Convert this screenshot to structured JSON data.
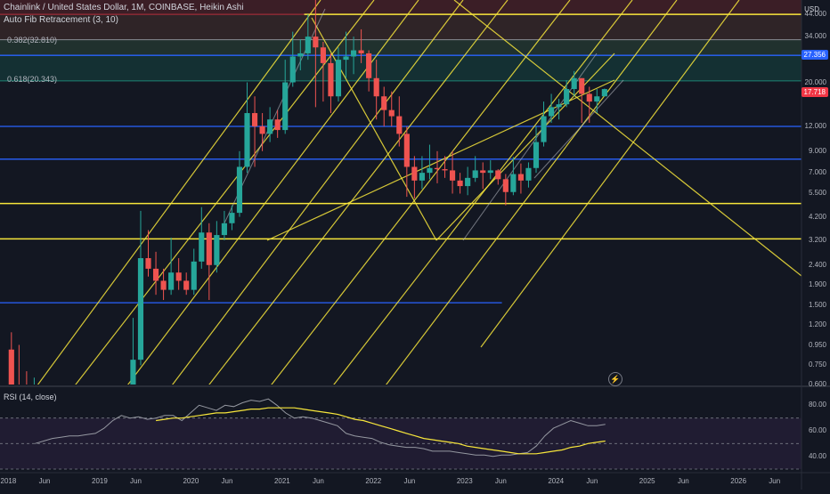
{
  "header": {
    "title": "Chainlink / United States Dollar, 1M, COINBASE, Heikin Ashi",
    "indicator": "Auto Fib Retracement (3, 10)"
  },
  "fib_levels": [
    {
      "label": "0.382(32.810)",
      "color": "#b2b5be"
    },
    {
      "label": "0.618(20.343)",
      "color": "#22ab94"
    }
  ],
  "price_axis": {
    "currency": "USD",
    "ticks": [
      "44.000",
      "34.000",
      "27.000",
      "20.000",
      "12.000",
      "9.000",
      "7.000",
      "5.500",
      "4.200",
      "3.200",
      "2.400",
      "1.900",
      "1.500",
      "1.200",
      "0.950",
      "0.750",
      "0.600"
    ]
  },
  "badges": [
    {
      "text": "27.356",
      "color": "#2962ff"
    },
    {
      "text": "17.718",
      "color": "#f23645"
    }
  ],
  "rsi": {
    "label": "RSI (14, close)",
    "ticks": [
      "80.00",
      "60.00",
      "40.00"
    ]
  },
  "time_axis": {
    "labels": [
      "2018",
      "Jun",
      "2019",
      "Jun",
      "2020",
      "Jun",
      "2021",
      "Jun",
      "2022",
      "Jun",
      "2023",
      "Jun",
      "2024",
      "Jun",
      "2025",
      "Jun",
      "2026",
      "Jun"
    ]
  },
  "colors": {
    "up": "#26a69a",
    "down": "#ef5350",
    "fib_line": "#f7e63b",
    "blue_line": "#2962ff",
    "rsi": "#9598a1",
    "rsi_ma": "#f7e63b"
  },
  "chart_data": {
    "type": "candlestick",
    "symbol": "LINK/USD",
    "scale": "log",
    "ylim": [
      0.6,
      52
    ],
    "candles": [
      {
        "t": "2018-01",
        "o": 0.9,
        "h": 1.1,
        "l": 0.45,
        "c": 0.45
      },
      {
        "t": "2018-02",
        "o": 0.6,
        "h": 0.95,
        "l": 0.45,
        "c": 0.45
      },
      {
        "t": "2018-03",
        "o": 0.45,
        "h": 0.7,
        "l": 0.4,
        "c": 0.4
      },
      {
        "t": "2018-04",
        "o": 0.4,
        "h": 0.65,
        "l": 0.35,
        "c": 0.4
      },
      {
        "t": "2019-05",
        "o": 0.6,
        "h": 1.3,
        "l": 0.55,
        "c": 0.8
      },
      {
        "t": "2019-06",
        "o": 0.8,
        "h": 4.5,
        "l": 0.75,
        "c": 2.6
      },
      {
        "t": "2019-07",
        "o": 2.6,
        "h": 3.6,
        "l": 2.1,
        "c": 2.3
      },
      {
        "t": "2019-08",
        "o": 2.3,
        "h": 2.8,
        "l": 1.7,
        "c": 2.0
      },
      {
        "t": "2019-09",
        "o": 2.0,
        "h": 2.3,
        "l": 1.6,
        "c": 1.8
      },
      {
        "t": "2019-10",
        "o": 1.8,
        "h": 3.3,
        "l": 1.7,
        "c": 2.2
      },
      {
        "t": "2019-11",
        "o": 2.2,
        "h": 2.6,
        "l": 1.8,
        "c": 2.0
      },
      {
        "t": "2019-12",
        "o": 2.0,
        "h": 2.2,
        "l": 1.7,
        "c": 1.8
      },
      {
        "t": "2020-01",
        "o": 1.8,
        "h": 2.9,
        "l": 1.7,
        "c": 2.5
      },
      {
        "t": "2020-02",
        "o": 2.5,
        "h": 4.7,
        "l": 2.3,
        "c": 3.5
      },
      {
        "t": "2020-03",
        "o": 3.5,
        "h": 3.9,
        "l": 1.6,
        "c": 2.4
      },
      {
        "t": "2020-04",
        "o": 2.4,
        "h": 4.0,
        "l": 2.2,
        "c": 3.4
      },
      {
        "t": "2020-05",
        "o": 3.4,
        "h": 4.5,
        "l": 3.2,
        "c": 3.9
      },
      {
        "t": "2020-06",
        "o": 3.9,
        "h": 4.8,
        "l": 3.6,
        "c": 4.4
      },
      {
        "t": "2020-07",
        "o": 4.4,
        "h": 9.0,
        "l": 4.2,
        "c": 7.5
      },
      {
        "t": "2020-08",
        "o": 7.5,
        "h": 20.0,
        "l": 7.0,
        "c": 14.0
      },
      {
        "t": "2020-09",
        "o": 14.0,
        "h": 17.0,
        "l": 7.5,
        "c": 12.0
      },
      {
        "t": "2020-10",
        "o": 12.0,
        "h": 14.0,
        "l": 9.0,
        "c": 11.0
      },
      {
        "t": "2020-11",
        "o": 11.0,
        "h": 15.0,
        "l": 10.0,
        "c": 13.0
      },
      {
        "t": "2020-12",
        "o": 13.0,
        "h": 14.5,
        "l": 10.5,
        "c": 11.5
      },
      {
        "t": "2021-01",
        "o": 11.5,
        "h": 26.0,
        "l": 11.0,
        "c": 20.0
      },
      {
        "t": "2021-02",
        "o": 20.0,
        "h": 36.0,
        "l": 19.0,
        "c": 27.0
      },
      {
        "t": "2021-03",
        "o": 27.0,
        "h": 33.0,
        "l": 23.0,
        "c": 28.0
      },
      {
        "t": "2021-04",
        "o": 28.0,
        "h": 44.0,
        "l": 26.0,
        "c": 34.0
      },
      {
        "t": "2021-05",
        "o": 34.0,
        "h": 52.0,
        "l": 15.0,
        "c": 30.0
      },
      {
        "t": "2021-06",
        "o": 30.0,
        "h": 32.0,
        "l": 16.0,
        "c": 25.0
      },
      {
        "t": "2021-07",
        "o": 25.0,
        "h": 28.0,
        "l": 14.0,
        "c": 17.0
      },
      {
        "t": "2021-08",
        "o": 17.0,
        "h": 30.0,
        "l": 16.0,
        "c": 26.0
      },
      {
        "t": "2021-09",
        "o": 26.0,
        "h": 36.0,
        "l": 21.0,
        "c": 27.0
      },
      {
        "t": "2021-10",
        "o": 27.0,
        "h": 34.0,
        "l": 22.0,
        "c": 29.0
      },
      {
        "t": "2021-11",
        "o": 29.0,
        "h": 37.0,
        "l": 25.0,
        "c": 28.0
      },
      {
        "t": "2021-12",
        "o": 28.0,
        "h": 29.0,
        "l": 18.0,
        "c": 21.0
      },
      {
        "t": "2022-01",
        "o": 21.0,
        "h": 26.0,
        "l": 13.0,
        "c": 17.0
      },
      {
        "t": "2022-02",
        "o": 17.0,
        "h": 19.0,
        "l": 12.0,
        "c": 14.5
      },
      {
        "t": "2022-03",
        "o": 14.5,
        "h": 18.0,
        "l": 12.0,
        "c": 13.5
      },
      {
        "t": "2022-04",
        "o": 13.5,
        "h": 17.0,
        "l": 9.5,
        "c": 11.0
      },
      {
        "t": "2022-05",
        "o": 11.0,
        "h": 12.0,
        "l": 5.3,
        "c": 7.5
      },
      {
        "t": "2022-06",
        "o": 7.5,
        "h": 8.5,
        "l": 5.2,
        "c": 6.4
      },
      {
        "t": "2022-07",
        "o": 6.4,
        "h": 8.5,
        "l": 5.8,
        "c": 7.0
      },
      {
        "t": "2022-08",
        "o": 7.0,
        "h": 9.7,
        "l": 6.5,
        "c": 7.4
      },
      {
        "t": "2022-09",
        "o": 7.4,
        "h": 9.0,
        "l": 6.2,
        "c": 7.3
      },
      {
        "t": "2022-10",
        "o": 7.3,
        "h": 8.5,
        "l": 6.6,
        "c": 7.2
      },
      {
        "t": "2022-11",
        "o": 7.2,
        "h": 9.0,
        "l": 5.5,
        "c": 6.4
      },
      {
        "t": "2022-12",
        "o": 6.4,
        "h": 7.0,
        "l": 5.5,
        "c": 6.0
      },
      {
        "t": "2023-01",
        "o": 6.0,
        "h": 7.5,
        "l": 5.4,
        "c": 6.6
      },
      {
        "t": "2023-02",
        "o": 6.6,
        "h": 8.5,
        "l": 6.3,
        "c": 7.2
      },
      {
        "t": "2023-03",
        "o": 7.2,
        "h": 7.9,
        "l": 5.8,
        "c": 7.0
      },
      {
        "t": "2023-04",
        "o": 7.0,
        "h": 8.1,
        "l": 6.5,
        "c": 7.2
      },
      {
        "t": "2023-05",
        "o": 7.2,
        "h": 7.3,
        "l": 6.1,
        "c": 6.5
      },
      {
        "t": "2023-06",
        "o": 6.5,
        "h": 6.9,
        "l": 4.8,
        "c": 5.6
      },
      {
        "t": "2023-07",
        "o": 5.6,
        "h": 8.4,
        "l": 5.4,
        "c": 6.9
      },
      {
        "t": "2023-08",
        "o": 6.9,
        "h": 7.8,
        "l": 5.5,
        "c": 6.4
      },
      {
        "t": "2023-09",
        "o": 6.4,
        "h": 7.9,
        "l": 5.9,
        "c": 7.4
      },
      {
        "t": "2023-10",
        "o": 7.4,
        "h": 12.0,
        "l": 7.0,
        "c": 10.0
      },
      {
        "t": "2023-11",
        "o": 10.0,
        "h": 16.0,
        "l": 9.5,
        "c": 13.5
      },
      {
        "t": "2023-12",
        "o": 13.5,
        "h": 17.5,
        "l": 12.5,
        "c": 15.0
      },
      {
        "t": "2024-01",
        "o": 15.0,
        "h": 16.5,
        "l": 13.0,
        "c": 15.5
      },
      {
        "t": "2024-02",
        "o": 15.5,
        "h": 20.5,
        "l": 15.0,
        "c": 18.5
      },
      {
        "t": "2024-03",
        "o": 18.5,
        "h": 22.8,
        "l": 17.0,
        "c": 21.0
      },
      {
        "t": "2024-04",
        "o": 21.0,
        "h": 21.0,
        "l": 12.5,
        "c": 17.5
      },
      {
        "t": "2024-05",
        "o": 17.5,
        "h": 19.0,
        "l": 12.5,
        "c": 16.0
      },
      {
        "t": "2024-06",
        "o": 16.0,
        "h": 18.5,
        "l": 14.0,
        "c": 17.0
      },
      {
        "t": "2024-07",
        "o": 17.0,
        "h": 18.6,
        "l": 17.0,
        "c": 18.5
      }
    ],
    "horizontal_levels": [
      {
        "price": 27.356,
        "color": "blue"
      },
      {
        "price": 12.0,
        "color": "blue"
      },
      {
        "price": 8.2,
        "color": "blue"
      },
      {
        "price": 4.9,
        "color": "yellow"
      },
      {
        "price": 3.25,
        "color": "yellow"
      },
      {
        "price": 1.55,
        "color": "blue",
        "end": "2023-06"
      },
      {
        "price": 44.0,
        "color": "yellow",
        "start": "2021-04"
      }
    ],
    "rsi": {
      "period": 14,
      "levels": [
        70,
        50,
        30
      ],
      "ylim": [
        30,
        90
      ],
      "values": [
        50,
        52,
        54,
        55,
        56,
        56,
        57,
        58,
        62,
        68,
        72,
        70,
        71,
        69,
        70,
        72,
        72,
        68,
        74,
        80,
        78,
        76,
        80,
        79,
        82,
        84,
        83,
        85,
        80,
        74,
        70,
        71,
        70,
        68,
        66,
        64,
        58,
        56,
        55,
        54,
        51,
        49,
        48,
        47,
        47,
        46,
        44,
        44,
        44,
        43,
        42,
        41,
        41,
        40,
        41,
        41,
        42,
        43,
        48,
        56,
        62,
        65,
        68,
        66,
        64,
        64,
        65
      ],
      "ma_values": [
        null,
        null,
        null,
        null,
        null,
        null,
        null,
        null,
        null,
        null,
        null,
        null,
        null,
        null,
        68,
        69,
        70,
        70,
        71,
        72,
        73,
        74,
        74,
        75,
        76,
        77,
        77,
        78,
        78,
        78,
        78,
        77,
        76,
        75,
        74,
        73,
        71,
        69,
        68,
        66,
        64,
        62,
        60,
        58,
        56,
        54,
        53,
        52,
        51,
        50,
        48,
        47,
        46,
        45,
        44,
        43,
        42,
        42,
        42,
        43,
        44,
        45,
        47,
        48,
        50,
        51,
        52
      ]
    }
  }
}
